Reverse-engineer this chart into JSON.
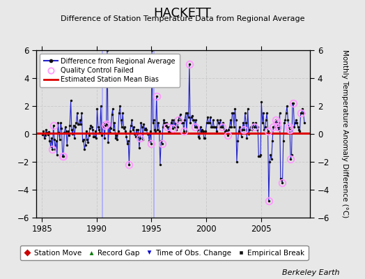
{
  "title": "HACKETT",
  "subtitle": "Difference of Station Temperature Data from Regional Average",
  "ylabel": "Monthly Temperature Anomaly Difference (°C)",
  "xlabel_years": [
    1985,
    1990,
    1995,
    2000,
    2005
  ],
  "ylim": [
    -6,
    6
  ],
  "xlim": [
    1984.5,
    2009.5
  ],
  "fig_bg_color": "#e8e8e8",
  "plot_bg_color": "#e0e0e0",
  "grid_color": "#cccccc",
  "bias_line_color": "#dd0000",
  "bias_line_value": 0.05,
  "line_color": "#2222cc",
  "marker_color": "#111111",
  "qc_failed_color": "#ff99ff",
  "watermark": "Berkeley Earth",
  "legend1_labels": [
    "Difference from Regional Average",
    "Quality Control Failed",
    "Estimated Station Mean Bias"
  ],
  "legend2_labels": [
    "Station Move",
    "Record Gap",
    "Time of Obs. Change",
    "Empirical Break"
  ],
  "legend2_colors": [
    "#cc0000",
    "#007700",
    "#0000cc",
    "#111111"
  ],
  "legend2_markers": [
    "D",
    "^",
    "v",
    "s"
  ],
  "time_series": [
    1985.04,
    1985.13,
    1985.21,
    1985.29,
    1985.38,
    1985.46,
    1985.54,
    1985.63,
    1985.71,
    1985.79,
    1985.88,
    1985.96,
    1986.04,
    1986.13,
    1986.21,
    1986.29,
    1986.38,
    1986.46,
    1986.54,
    1986.63,
    1986.71,
    1986.79,
    1986.88,
    1986.96,
    1987.04,
    1987.13,
    1987.21,
    1987.29,
    1987.38,
    1987.46,
    1987.54,
    1987.63,
    1987.71,
    1987.79,
    1987.88,
    1987.96,
    1988.04,
    1988.13,
    1988.21,
    1988.29,
    1988.38,
    1988.46,
    1988.54,
    1988.63,
    1988.71,
    1988.79,
    1988.88,
    1988.96,
    1989.04,
    1989.13,
    1989.21,
    1989.29,
    1989.38,
    1989.46,
    1989.54,
    1989.63,
    1989.71,
    1989.79,
    1989.88,
    1989.96,
    1990.04,
    1990.13,
    1990.21,
    1990.29,
    1990.38,
    1990.46,
    1990.54,
    1990.63,
    1990.71,
    1990.79,
    1990.88,
    1990.96,
    1991.04,
    1991.13,
    1991.21,
    1991.29,
    1991.38,
    1991.46,
    1991.54,
    1991.63,
    1991.71,
    1991.79,
    1991.88,
    1991.96,
    1992.04,
    1992.13,
    1992.21,
    1992.29,
    1992.38,
    1992.46,
    1992.54,
    1992.63,
    1992.71,
    1992.79,
    1992.88,
    1992.96,
    1993.04,
    1993.13,
    1993.21,
    1993.29,
    1993.38,
    1993.46,
    1993.54,
    1993.63,
    1993.71,
    1993.79,
    1993.88,
    1993.96,
    1994.04,
    1994.13,
    1994.21,
    1994.29,
    1994.38,
    1994.46,
    1994.54,
    1994.63,
    1994.71,
    1994.79,
    1994.88,
    1994.96,
    1995.04,
    1995.13,
    1995.21,
    1995.29,
    1995.38,
    1995.46,
    1995.54,
    1995.63,
    1995.71,
    1995.79,
    1995.88,
    1995.96,
    1996.04,
    1996.13,
    1996.21,
    1996.29,
    1996.38,
    1996.46,
    1996.54,
    1996.63,
    1996.71,
    1996.79,
    1996.88,
    1996.96,
    1997.04,
    1997.13,
    1997.21,
    1997.29,
    1997.38,
    1997.46,
    1997.54,
    1997.63,
    1997.71,
    1997.79,
    1997.88,
    1997.96,
    1998.04,
    1998.13,
    1998.21,
    1998.29,
    1998.38,
    1998.46,
    1998.54,
    1998.63,
    1998.71,
    1998.79,
    1998.88,
    1998.96,
    1999.04,
    1999.13,
    1999.21,
    1999.29,
    1999.38,
    1999.46,
    1999.54,
    1999.63,
    1999.71,
    1999.79,
    1999.88,
    1999.96,
    2000.04,
    2000.13,
    2000.21,
    2000.29,
    2000.38,
    2000.46,
    2000.54,
    2000.63,
    2000.71,
    2000.79,
    2000.88,
    2000.96,
    2001.04,
    2001.13,
    2001.21,
    2001.29,
    2001.38,
    2001.46,
    2001.54,
    2001.63,
    2001.71,
    2001.79,
    2001.88,
    2001.96,
    2002.04,
    2002.13,
    2002.21,
    2002.29,
    2002.38,
    2002.46,
    2002.54,
    2002.63,
    2002.71,
    2002.79,
    2002.88,
    2002.96,
    2003.04,
    2003.13,
    2003.21,
    2003.29,
    2003.38,
    2003.46,
    2003.54,
    2003.63,
    2003.71,
    2003.79,
    2003.88,
    2003.96,
    2004.04,
    2004.13,
    2004.21,
    2004.29,
    2004.38,
    2004.46,
    2004.54,
    2004.63,
    2004.71,
    2004.79,
    2004.88,
    2004.96,
    2005.04,
    2005.13,
    2005.21,
    2005.29,
    2005.38,
    2005.46,
    2005.54,
    2005.63,
    2005.71,
    2005.79,
    2005.88,
    2005.96,
    2006.04,
    2006.13,
    2006.21,
    2006.29,
    2006.38,
    2006.46,
    2006.54,
    2006.63,
    2006.71,
    2006.79,
    2006.88,
    2006.96,
    2007.04,
    2007.13,
    2007.21,
    2007.29,
    2007.38,
    2007.46,
    2007.54,
    2007.63,
    2007.71,
    2007.79,
    2007.88,
    2007.96,
    2008.04,
    2008.13,
    2008.21,
    2008.29,
    2008.38,
    2008.46,
    2008.54,
    2008.63,
    2008.71,
    2008.79,
    2008.88,
    2008.96
  ],
  "values": [
    -0.05,
    0.2,
    -0.3,
    -0.1,
    0.3,
    0.1,
    -0.05,
    0.15,
    -0.5,
    -0.9,
    -0.3,
    -1.1,
    0.6,
    -0.4,
    -1.1,
    -0.5,
    -1.5,
    0.8,
    0.1,
    -0.4,
    0.8,
    0.4,
    -1.6,
    -1.6,
    0.1,
    0.5,
    0.2,
    -0.8,
    0.2,
    -0.1,
    0.6,
    2.4,
    0.3,
    0.0,
    0.6,
    -0.3,
    0.5,
    0.8,
    1.5,
    0.7,
    0.7,
    1.0,
    0.7,
    1.5,
    -0.5,
    -0.4,
    -1.1,
    -0.8,
    0.2,
    -0.4,
    -0.6,
    -0.1,
    0.4,
    0.6,
    0.5,
    0.3,
    -0.2,
    -0.2,
    0.2,
    -0.3,
    1.8,
    0.5,
    0.3,
    0.1,
    2.0,
    -0.1,
    0.5,
    0.8,
    -0.3,
    0.6,
    0.7,
    6.0,
    -0.6,
    0.5,
    0.1,
    0.4,
    1.4,
    1.8,
    0.3,
    0.8,
    -0.3,
    -0.1,
    -0.4,
    0.2,
    1.5,
    2.0,
    1.0,
    0.5,
    1.5,
    0.4,
    0.5,
    0.2,
    -0.2,
    -0.7,
    -0.5,
    -2.2,
    0.2,
    0.6,
    1.0,
    0.3,
    0.5,
    0.0,
    -0.2,
    0.3,
    -0.2,
    0.3,
    -1.0,
    -0.3,
    0.8,
    0.5,
    -0.4,
    0.7,
    0.3,
    0.4,
    0.3,
    0.0,
    0.0,
    -0.5,
    0.2,
    -0.7,
    6.0,
    0.8,
    1.0,
    0.3,
    0.2,
    2.7,
    0.3,
    0.8,
    0.2,
    -2.2,
    -0.5,
    -0.7,
    0.5,
    1.0,
    0.8,
    0.6,
    0.8,
    0.5,
    0.2,
    0.5,
    0.1,
    0.8,
    1.0,
    0.4,
    1.0,
    0.5,
    0.8,
    0.3,
    0.5,
    1.0,
    1.2,
    1.4,
    1.0,
    0.8,
    0.8,
    0.2,
    1.0,
    1.5,
    0.2,
    1.5,
    1.2,
    5.0,
    0.8,
    1.2,
    1.3,
    1.0,
    1.0,
    0.5,
    1.0,
    0.5,
    0.3,
    -0.2,
    -0.3,
    0.5,
    0.2,
    0.3,
    0.2,
    -0.3,
    -0.3,
    0.2,
    0.8,
    1.2,
    0.8,
    0.8,
    1.2,
    0.5,
    0.5,
    1.0,
    0.5,
    0.5,
    0.5,
    0.2,
    1.0,
    0.8,
    0.5,
    1.0,
    0.5,
    0.5,
    0.8,
    0.3,
    0.2,
    0.3,
    0.2,
    -0.1,
    0.3,
    0.5,
    1.0,
    0.5,
    1.5,
    1.5,
    0.5,
    1.8,
    1.0,
    -2.0,
    -0.5,
    0.2,
    0.5,
    0.3,
    -0.2,
    0.3,
    0.8,
    0.3,
    1.5,
    0.8,
    -0.3,
    1.8,
    0.0,
    0.3,
    0.5,
    0.5,
    0.3,
    0.8,
    0.5,
    0.5,
    0.8,
    0.3,
    0.5,
    -1.6,
    -1.6,
    -1.5,
    2.3,
    0.8,
    1.5,
    0.3,
    0.5,
    1.0,
    1.5,
    0.2,
    -4.8,
    -2.0,
    -1.5,
    -1.8,
    -0.5,
    0.5,
    0.5,
    0.8,
    1.0,
    0.8,
    0.5,
    0.3,
    1.5,
    -3.2,
    -3.3,
    -3.5,
    -0.5,
    0.8,
    1.0,
    1.5,
    2.0,
    1.0,
    0.5,
    0.3,
    -1.8,
    -1.5,
    2.2,
    2.2,
    0.5,
    0.8,
    1.0,
    0.8,
    0.5,
    0.3,
    0.2,
    1.5,
    1.5,
    1.8,
    1.5,
    0.8
  ],
  "qc_failed_indices": [
    11,
    12,
    22,
    23,
    69,
    70,
    95,
    107,
    119,
    125,
    131,
    137,
    143,
    149,
    155,
    161,
    167,
    197,
    203,
    221,
    232,
    247,
    248,
    253,
    256,
    257,
    258,
    263,
    270,
    271,
    272,
    275,
    283
  ],
  "vertical_lines": [
    1990.5,
    1995.2
  ],
  "vertical_line_color": "#aaaaff"
}
